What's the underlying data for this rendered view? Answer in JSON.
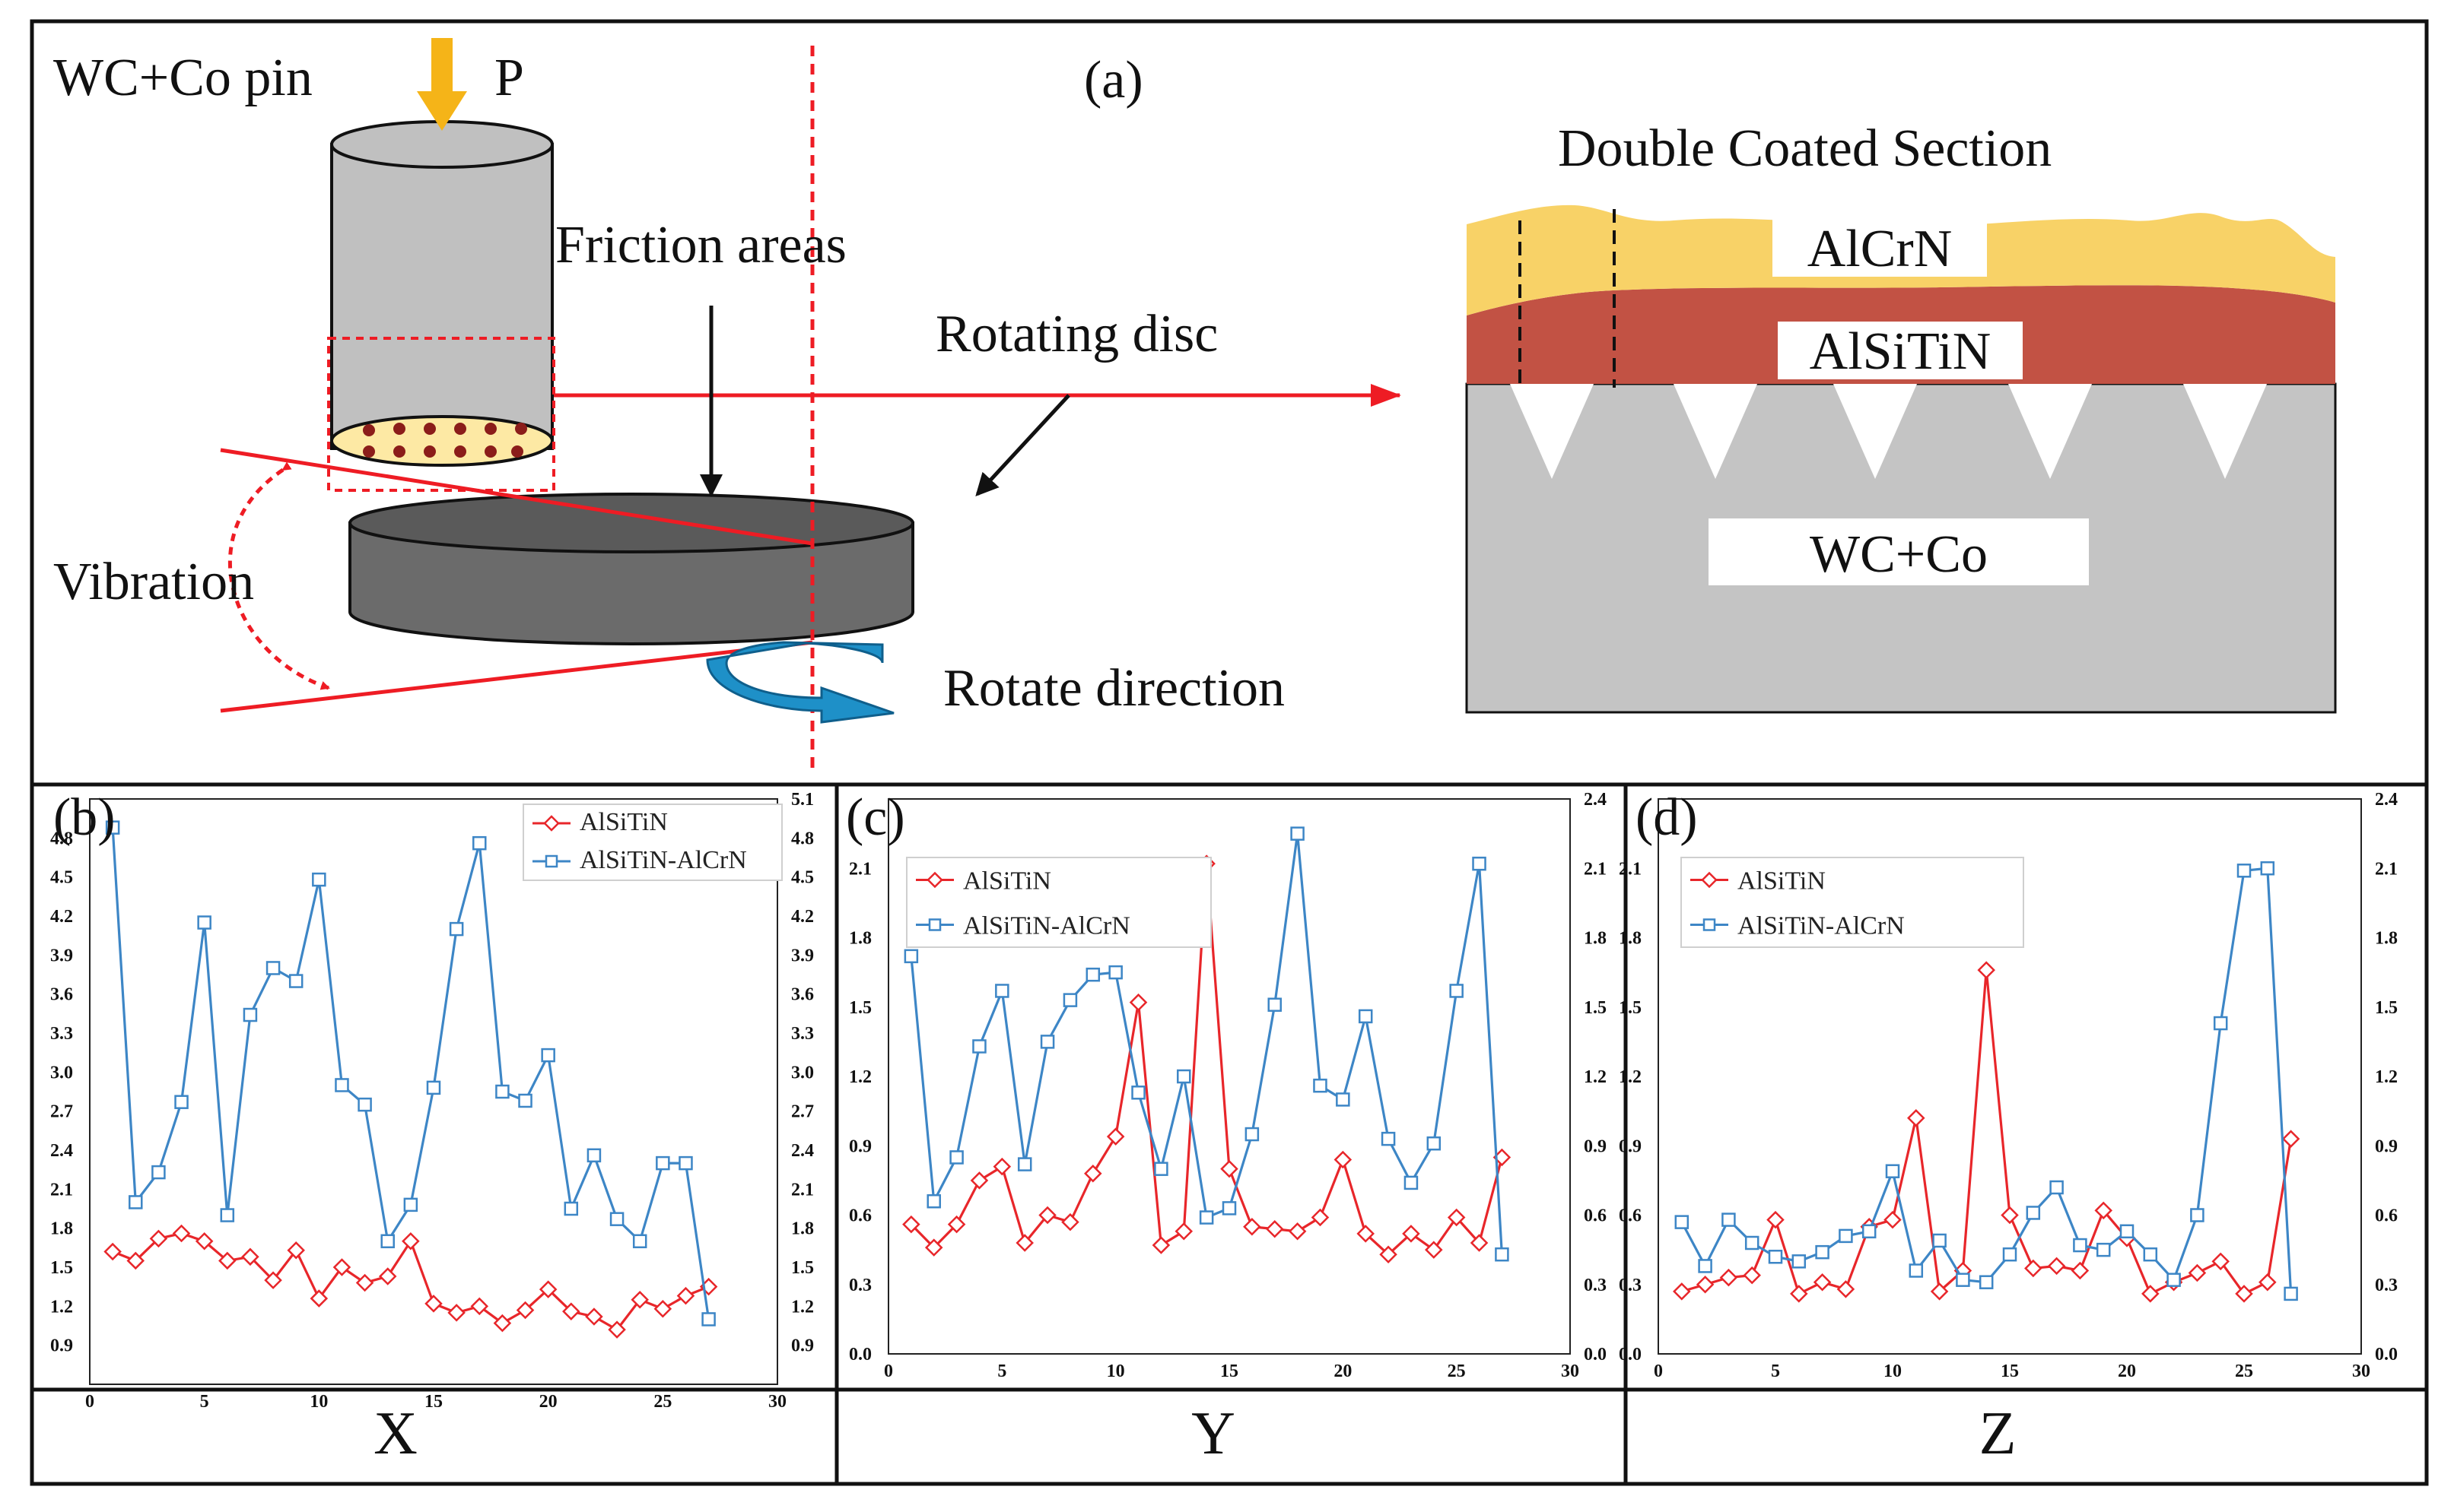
{
  "diagram": {
    "panel_label": "(a)",
    "pin_label": "WC+Co pin",
    "load_label": "P",
    "friction_label": "Friction areas",
    "disc_label": "Rotating disc",
    "vibration_label": "Vibration",
    "rotate_label": "Rotate direction",
    "section_title": "Double Coated Section",
    "layer_top": "AlCrN",
    "layer_mid": "AlSiTiN",
    "substrate": "WC+Co",
    "colors": {
      "pin": "#c0c0c0",
      "disc": "#6b6b6b",
      "alcrn": "#f8d267",
      "alsitin": "#c25244",
      "substrate": "#c4c4c4",
      "arrow_load": "#f5b418",
      "rotate_arrow": "#1e90c8",
      "red": "#ee1c24"
    }
  },
  "chart_data": [
    {
      "type": "line",
      "panel_label": "(b)",
      "axis_label": "X",
      "x": [
        1,
        2,
        3,
        4,
        5,
        6,
        7,
        8,
        9,
        10,
        11,
        12,
        13,
        14,
        15,
        16,
        17,
        18,
        19,
        20,
        21,
        22,
        23,
        24,
        25,
        26,
        27
      ],
      "xticks": [
        "0",
        "5",
        "10",
        "15",
        "20",
        "25",
        "30"
      ],
      "xlim": [
        0,
        30
      ],
      "ylim": [
        0.6,
        5.1
      ],
      "yticks_left": [
        "0.9",
        "1.2",
        "1.5",
        "1.8",
        "2.1",
        "2.4",
        "2.7",
        "3.0",
        "3.3",
        "3.6",
        "3.9",
        "4.2",
        "4.5",
        "4.8"
      ],
      "yticks_right": [
        "0.9",
        "1.2",
        "1.5",
        "1.8",
        "2.1",
        "2.4",
        "2.7",
        "3.0",
        "3.3",
        "3.6",
        "3.9",
        "4.2",
        "4.5",
        "4.8",
        "5.1"
      ],
      "legend_position": "top-right",
      "series": [
        {
          "name": "AlSiTiN",
          "color": "#e8262a",
          "marker": "diamond",
          "values": [
            1.62,
            1.55,
            1.72,
            1.76,
            1.7,
            1.55,
            1.58,
            1.4,
            1.63,
            1.26,
            1.5,
            1.38,
            1.43,
            1.7,
            1.22,
            1.15,
            1.2,
            1.07,
            1.17,
            1.33,
            1.16,
            1.12,
            1.02,
            1.25,
            1.18,
            1.28,
            1.35
          ]
        },
        {
          "name": "AlSiTiN-AlCrN",
          "color": "#3d86c6",
          "marker": "square",
          "values": [
            4.88,
            2.0,
            2.23,
            2.77,
            4.15,
            1.9,
            3.44,
            3.8,
            3.7,
            4.48,
            2.9,
            2.75,
            1.7,
            1.98,
            2.88,
            4.1,
            4.76,
            2.85,
            2.78,
            3.13,
            1.95,
            2.36,
            1.87,
            1.7,
            2.3,
            2.3,
            1.1
          ]
        }
      ]
    },
    {
      "type": "line",
      "panel_label": "(c)",
      "axis_label": "Y",
      "x": [
        1,
        2,
        3,
        4,
        5,
        6,
        7,
        8,
        9,
        10,
        11,
        12,
        13,
        14,
        15,
        16,
        17,
        18,
        19,
        20,
        21,
        22,
        23,
        24,
        25,
        26,
        27
      ],
      "xticks": [
        "0",
        "5",
        "10",
        "15",
        "20",
        "25",
        "30"
      ],
      "xlim": [
        0,
        30
      ],
      "ylim": [
        0,
        2.4
      ],
      "yticks_left": [
        "0.0",
        "0.3",
        "0.6",
        "0.9",
        "1.2",
        "1.5",
        "1.8",
        "2.1"
      ],
      "yticks_right": [
        "0.0",
        "0.3",
        "0.6",
        "0.9",
        "1.2",
        "1.5",
        "1.8",
        "2.1",
        "2.4"
      ],
      "legend_position": "top-left",
      "series": [
        {
          "name": "AlSiTiN",
          "color": "#e8262a",
          "marker": "diamond",
          "values": [
            0.56,
            0.46,
            0.56,
            0.75,
            0.81,
            0.48,
            0.6,
            0.57,
            0.78,
            0.94,
            1.52,
            0.47,
            0.53,
            2.12,
            0.8,
            0.55,
            0.54,
            0.53,
            0.59,
            0.84,
            0.52,
            0.43,
            0.52,
            0.45,
            0.59,
            0.48,
            0.85
          ]
        },
        {
          "name": "AlSiTiN-AlCrN",
          "color": "#3d86c6",
          "marker": "square",
          "values": [
            1.72,
            0.66,
            0.85,
            1.33,
            1.57,
            0.82,
            1.35,
            1.53,
            1.64,
            1.65,
            1.13,
            0.8,
            1.2,
            0.59,
            0.63,
            0.95,
            1.51,
            2.25,
            1.16,
            1.1,
            1.46,
            0.93,
            0.74,
            0.91,
            1.57,
            2.12,
            0.43
          ]
        }
      ]
    },
    {
      "type": "line",
      "panel_label": "(d)",
      "axis_label": "Z",
      "x": [
        1,
        2,
        3,
        4,
        5,
        6,
        7,
        8,
        9,
        10,
        11,
        12,
        13,
        14,
        15,
        16,
        17,
        18,
        19,
        20,
        21,
        22,
        23,
        24,
        25,
        26,
        27
      ],
      "xticks": [
        "0",
        "5",
        "10",
        "15",
        "20",
        "25",
        "30"
      ],
      "xlim": [
        0,
        30
      ],
      "ylim": [
        0,
        2.4
      ],
      "yticks_left": [
        "0.0",
        "0.3",
        "0.6",
        "0.9",
        "1.2",
        "1.5",
        "1.8",
        "2.1"
      ],
      "yticks_right": [
        "0.0",
        "0.3",
        "0.6",
        "0.9",
        "1.2",
        "1.5",
        "1.8",
        "2.1",
        "2.4"
      ],
      "legend_position": "top-left",
      "series": [
        {
          "name": "AlSiTiN",
          "color": "#e8262a",
          "marker": "diamond",
          "values": [
            0.27,
            0.3,
            0.33,
            0.34,
            0.58,
            0.26,
            0.31,
            0.28,
            0.55,
            0.58,
            1.02,
            0.27,
            0.36,
            1.66,
            0.6,
            0.37,
            0.38,
            0.36,
            0.62,
            0.5,
            0.26,
            0.31,
            0.35,
            0.4,
            0.26,
            0.31,
            0.93
          ]
        },
        {
          "name": "AlSiTiN-AlCrN",
          "color": "#3d86c6",
          "marker": "square",
          "values": [
            0.57,
            0.38,
            0.58,
            0.48,
            0.42,
            0.4,
            0.44,
            0.51,
            0.53,
            0.79,
            0.36,
            0.49,
            0.32,
            0.31,
            0.43,
            0.61,
            0.72,
            0.47,
            0.45,
            0.53,
            0.43,
            0.32,
            0.6,
            1.43,
            2.09,
            2.1,
            0.26
          ]
        }
      ]
    }
  ]
}
